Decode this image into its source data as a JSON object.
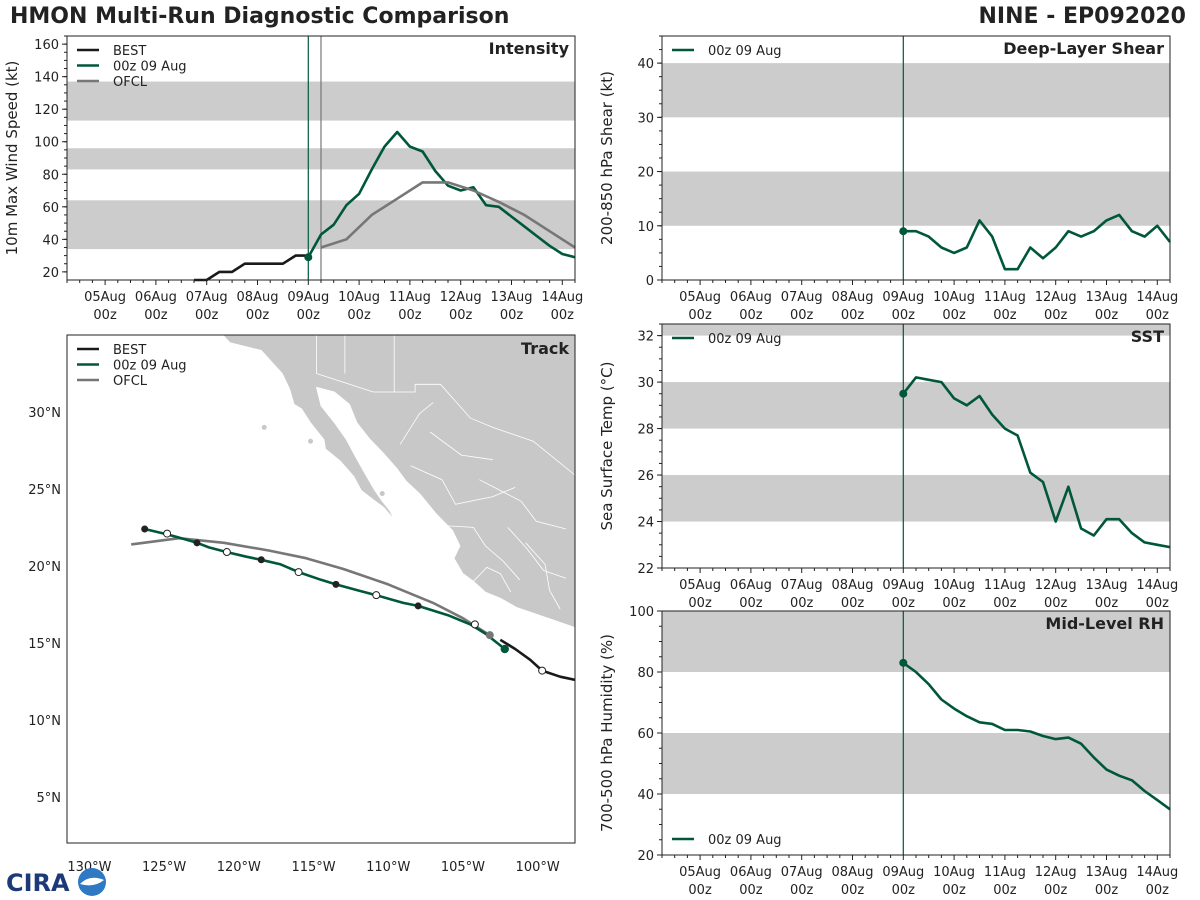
{
  "header": {
    "title_left": "HMON Multi-Run Diagnostic Comparison",
    "title_right": "NINE - EP092020"
  },
  "logo": {
    "text": "CIRA"
  },
  "colors": {
    "best": "#1a1a1a",
    "run": "#00573c",
    "ofcl": "#777777",
    "band": "#cccccc"
  },
  "time_axis": {
    "ticks": [
      0,
      1,
      2,
      3,
      4,
      5,
      6,
      7,
      8,
      9
    ],
    "tick_labels": [
      "05Aug",
      "06Aug",
      "07Aug",
      "08Aug",
      "09Aug",
      "10Aug",
      "11Aug",
      "12Aug",
      "13Aug",
      "14Aug"
    ],
    "tick_sub": "00z",
    "xlim": [
      -0.75,
      9.25
    ]
  },
  "chart_data": [
    {
      "id": "intensity",
      "type": "line",
      "title": "Intensity",
      "xlabel": "",
      "ylabel": "10m Max Wind Speed (kt)",
      "ylim": [
        15,
        165
      ],
      "yticks": [
        20,
        40,
        60,
        80,
        100,
        120,
        140,
        160
      ],
      "bands": [
        [
          34,
          64
        ],
        [
          83,
          96
        ],
        [
          113,
          137
        ]
      ],
      "vlines": [
        {
          "x": 4.0,
          "color": "#00573c"
        },
        {
          "x": 4.25,
          "color": "#777777"
        }
      ],
      "legend": [
        "BEST",
        "00z 09 Aug",
        "OFCL"
      ],
      "series": [
        {
          "name": "BEST",
          "color": "#1a1a1a",
          "x": [
            1.75,
            2.0,
            2.25,
            2.5,
            2.75,
            3.0,
            3.25,
            3.5,
            3.75,
            4.0
          ],
          "y": [
            15,
            15,
            20,
            20,
            25,
            25,
            25,
            25,
            30,
            30
          ]
        },
        {
          "name": "00z 09 Aug",
          "color": "#00573c",
          "marker_first": true,
          "x": [
            4.0,
            4.25,
            4.5,
            4.75,
            5.0,
            5.25,
            5.5,
            5.75,
            6.0,
            6.25,
            6.5,
            6.75,
            7.0,
            7.25,
            7.5,
            7.75,
            8.0,
            8.25,
            8.5,
            8.75,
            9.0,
            9.25
          ],
          "y": [
            29,
            43,
            49,
            61,
            68,
            83,
            97,
            106,
            97,
            94,
            82,
            73,
            70,
            72,
            61,
            60,
            54,
            48,
            42,
            36,
            31,
            29
          ]
        },
        {
          "name": "OFCL",
          "color": "#777777",
          "x": [
            4.25,
            4.75,
            5.25,
            5.75,
            6.25,
            6.75,
            7.25,
            7.75,
            8.25,
            8.75,
            9.25
          ],
          "y": [
            35,
            40,
            55,
            65,
            75,
            75,
            70,
            63,
            55,
            45,
            35
          ]
        }
      ]
    },
    {
      "id": "shear",
      "type": "line",
      "title": "Deep-Layer Shear",
      "xlabel": "",
      "ylabel": "200-850 hPa Shear (kt)",
      "ylim": [
        0,
        45
      ],
      "yticks": [
        0,
        10,
        20,
        30,
        40
      ],
      "bands": [
        [
          10,
          20
        ],
        [
          30,
          40
        ]
      ],
      "vlines": [
        {
          "x": 4.0,
          "color": "#00573c"
        }
      ],
      "legend": [
        "00z 09 Aug"
      ],
      "series": [
        {
          "name": "00z 09 Aug",
          "color": "#00573c",
          "marker_first": true,
          "x": [
            4.0,
            4.25,
            4.5,
            4.75,
            5.0,
            5.25,
            5.5,
            5.75,
            6.0,
            6.25,
            6.5,
            6.75,
            7.0,
            7.25,
            7.5,
            7.75,
            8.0,
            8.25,
            8.5,
            8.75,
            9.0,
            9.25
          ],
          "y": [
            9,
            9,
            8,
            6,
            5,
            6,
            11,
            8,
            2,
            2,
            6,
            4,
            6,
            9,
            8,
            9,
            11,
            12,
            9,
            8,
            10,
            7
          ]
        }
      ]
    },
    {
      "id": "sst",
      "type": "line",
      "title": "SST",
      "xlabel": "",
      "ylabel": "Sea Surface Temp (°C)",
      "ylim": [
        22,
        32.5
      ],
      "yticks": [
        22,
        24,
        26,
        28,
        30,
        32
      ],
      "bands": [
        [
          24,
          26
        ],
        [
          28,
          30
        ],
        [
          32,
          33
        ]
      ],
      "vlines": [
        {
          "x": 4.0,
          "color": "#00573c"
        }
      ],
      "legend": [
        "00z 09 Aug"
      ],
      "series": [
        {
          "name": "00z 09 Aug",
          "color": "#00573c",
          "marker_first": true,
          "x": [
            4.0,
            4.25,
            4.5,
            4.75,
            5.0,
            5.25,
            5.5,
            5.75,
            6.0,
            6.25,
            6.5,
            6.75,
            7.0,
            7.25,
            7.5,
            7.75,
            8.0,
            8.25,
            8.5,
            8.75,
            9.0,
            9.25
          ],
          "y": [
            29.5,
            30.2,
            30.1,
            30.0,
            29.3,
            29.0,
            29.4,
            28.6,
            28.0,
            27.7,
            26.1,
            25.7,
            24.0,
            25.5,
            23.7,
            23.4,
            24.1,
            24.1,
            23.5,
            23.1,
            23.0,
            22.9
          ]
        }
      ]
    },
    {
      "id": "rh",
      "type": "line",
      "title": "Mid-Level RH",
      "xlabel": "",
      "ylabel": "700-500 hPa Humidity (%)",
      "ylim": [
        20,
        100
      ],
      "yticks": [
        20,
        40,
        60,
        80,
        100
      ],
      "bands": [
        [
          40,
          60
        ],
        [
          80,
          100
        ]
      ],
      "vlines": [
        {
          "x": 4.0,
          "color": "#00573c"
        }
      ],
      "legend": [
        "00z 09 Aug"
      ],
      "series": [
        {
          "name": "00z 09 Aug",
          "color": "#00573c",
          "marker_first": true,
          "x": [
            4.0,
            4.25,
            4.5,
            4.75,
            5.0,
            5.25,
            5.5,
            5.75,
            6.0,
            6.25,
            6.5,
            6.75,
            7.0,
            7.25,
            7.5,
            7.75,
            8.0,
            8.25,
            8.5,
            8.75,
            9.0,
            9.25
          ],
          "y": [
            83,
            80,
            76,
            71,
            68,
            65.5,
            63.5,
            63,
            61,
            61,
            60.5,
            59,
            58,
            58.5,
            56.5,
            52,
            48,
            46,
            44.5,
            41,
            38,
            35
          ]
        }
      ]
    },
    {
      "id": "track",
      "type": "line",
      "title": "Track",
      "xlabel": "",
      "ylabel": "",
      "xlim": [
        -131.5,
        -97.5
      ],
      "ylim": [
        2,
        35
      ],
      "xticks": [
        -130,
        -125,
        -120,
        -115,
        -110,
        -105,
        -100
      ],
      "xtick_labels": [
        "130°W",
        "125°W",
        "120°W",
        "115°W",
        "110°W",
        "105°W",
        "100°W"
      ],
      "yticks": [
        5,
        10,
        15,
        20,
        25,
        30
      ],
      "ytick_labels": [
        "5°N",
        "10°N",
        "15°N",
        "20°N",
        "25°N",
        "30°N"
      ],
      "legend": [
        "BEST",
        "00z 09 Aug",
        "OFCL"
      ],
      "series": [
        {
          "name": "BEST",
          "color": "#1a1a1a",
          "lon": [
            -97.5,
            -98.5,
            -99.7,
            -100.5,
            -101.5,
            -102.5
          ],
          "lat": [
            12.6,
            12.8,
            13.2,
            13.9,
            14.6,
            15.2
          ]
        },
        {
          "name": "00z 09 Aug",
          "color": "#00573c",
          "lon": [
            -102.2,
            -103.5,
            -104.5,
            -106,
            -108,
            -109,
            -110.8,
            -112,
            -113.5,
            -114.5,
            -116,
            -117.2,
            -118.5,
            -119.5,
            -120.8,
            -122,
            -122.8,
            -124.2,
            -125,
            -126.3
          ],
          "lat": [
            14.6,
            15.6,
            16.2,
            16.8,
            17.4,
            17.6,
            18.1,
            18.4,
            18.8,
            19.1,
            19.6,
            20.1,
            20.4,
            20.6,
            20.9,
            21.2,
            21.5,
            21.9,
            22.1,
            22.4
          ],
          "markers": [
            {
              "lon": -102.2,
              "lat": 14.6,
              "kind": "start"
            },
            {
              "lon": -104.2,
              "lat": 16.2,
              "kind": "open"
            },
            {
              "lon": -108.0,
              "lat": 17.4,
              "kind": "solid"
            },
            {
              "lon": -110.8,
              "lat": 18.1,
              "kind": "open"
            },
            {
              "lon": -113.5,
              "lat": 18.8,
              "kind": "solid"
            },
            {
              "lon": -116.0,
              "lat": 19.6,
              "kind": "open"
            },
            {
              "lon": -118.5,
              "lat": 20.4,
              "kind": "solid"
            },
            {
              "lon": -120.8,
              "lat": 20.9,
              "kind": "open"
            },
            {
              "lon": -122.8,
              "lat": 21.5,
              "kind": "solid"
            },
            {
              "lon": -124.8,
              "lat": 22.1,
              "kind": "open"
            },
            {
              "lon": -126.3,
              "lat": 22.4,
              "kind": "solid"
            }
          ]
        },
        {
          "name": "OFCL",
          "color": "#777777",
          "lon": [
            -103.2,
            -105,
            -107,
            -110,
            -113,
            -115.5,
            -118,
            -121,
            -124,
            -127.2
          ],
          "lat": [
            15.5,
            16.6,
            17.6,
            18.8,
            19.8,
            20.5,
            21.0,
            21.5,
            21.8,
            21.4
          ],
          "markers": [
            {
              "lon": -103.2,
              "lat": 15.5,
              "kind": "ofcl"
            }
          ]
        },
        {
          "name": "BEST-markers",
          "color": "#1a1a1a",
          "lon": [],
          "lat": [],
          "markers": [
            {
              "lon": -99.7,
              "lat": 13.2,
              "kind": "open"
            }
          ]
        }
      ]
    }
  ]
}
